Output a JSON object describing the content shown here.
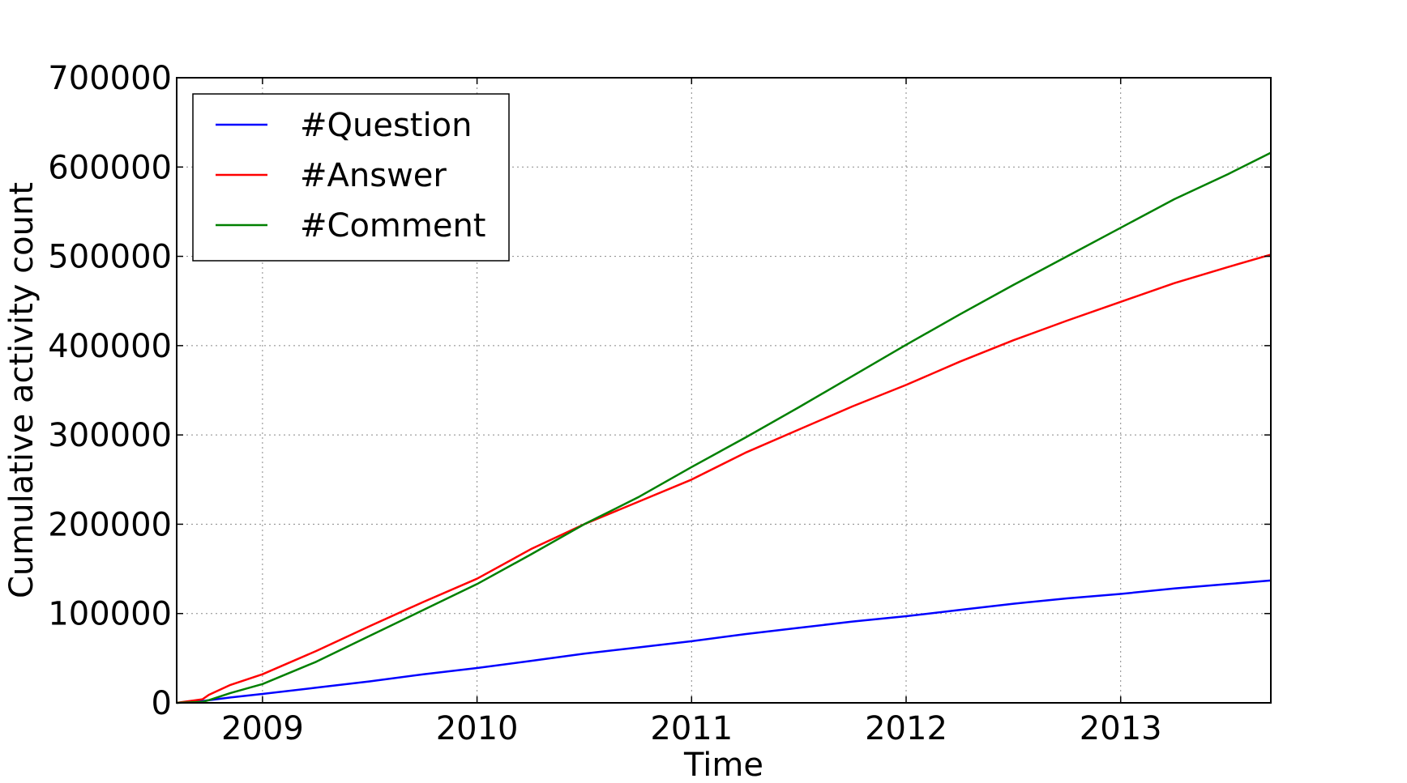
{
  "chart_data": {
    "type": "line",
    "title": "",
    "xlabel": "Time",
    "ylabel": "Cumulative activity count",
    "xlim": [
      2008.6,
      2013.7
    ],
    "ylim": [
      0,
      700000
    ],
    "xticks": [
      2009,
      2010,
      2011,
      2012,
      2013
    ],
    "xtick_labels": [
      "2009",
      "2010",
      "2011",
      "2012",
      "2013"
    ],
    "yticks": [
      0,
      100000,
      200000,
      300000,
      400000,
      500000,
      600000,
      700000
    ],
    "ytick_labels": [
      "0",
      "100000",
      "200000",
      "300000",
      "400000",
      "500000",
      "600000",
      "700000"
    ],
    "grid": true,
    "legend_position": "top-left",
    "x": [
      2008.6,
      2008.72,
      2008.75,
      2008.85,
      2009.0,
      2009.25,
      2009.5,
      2009.75,
      2010.0,
      2010.25,
      2010.5,
      2010.75,
      2011.0,
      2011.25,
      2011.5,
      2011.75,
      2012.0,
      2012.25,
      2012.5,
      2012.75,
      2013.0,
      2013.25,
      2013.5,
      2013.7
    ],
    "series": [
      {
        "name": "#Question",
        "color": "#0000ff",
        "values": [
          0,
          2000,
          3000,
          6000,
          10000,
          17000,
          24000,
          32000,
          39000,
          47000,
          55000,
          62000,
          69000,
          77000,
          84000,
          91000,
          97000,
          104000,
          111000,
          117000,
          122000,
          128000,
          133000,
          137000
        ]
      },
      {
        "name": "#Answer",
        "color": "#ff0000",
        "values": [
          0,
          4000,
          9000,
          20000,
          32000,
          58000,
          86000,
          113000,
          139000,
          172000,
          200000,
          225000,
          250000,
          280000,
          306000,
          332000,
          356000,
          382000,
          406000,
          428000,
          449000,
          470000,
          488000,
          502000
        ]
      },
      {
        "name": "#Comment",
        "color": "#008000",
        "values": [
          0,
          1000,
          3000,
          11000,
          21000,
          46000,
          75000,
          104000,
          133000,
          166000,
          200000,
          230000,
          264000,
          297000,
          331000,
          366000,
          401000,
          435000,
          468000,
          500000,
          532000,
          564000,
          592000,
          616000
        ]
      }
    ]
  }
}
